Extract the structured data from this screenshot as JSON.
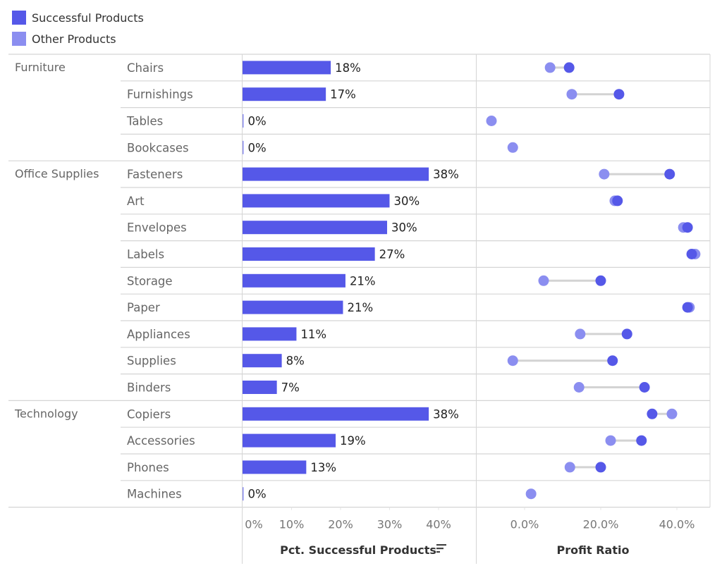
{
  "legend": {
    "items": [
      {
        "label": "Successful Products",
        "color": "#5558E8"
      },
      {
        "label": "Other Products",
        "color": "#8B8EF0"
      }
    ]
  },
  "colors": {
    "successful": "#5558E8",
    "other": "#8B8EF0",
    "connector": "#D3D3D3",
    "grid": "#D5D5D5"
  },
  "chart_data": [
    {
      "type": "bar",
      "title": "",
      "xlabel": "Pct. Successful Products",
      "ylabel": "",
      "xlim": [
        0,
        0.45
      ],
      "x_ticks": [
        "0%",
        "10%",
        "20%",
        "30%",
        "40%"
      ],
      "x_tick_values": [
        0,
        0.1,
        0.2,
        0.3,
        0.4
      ],
      "sorted": "descending",
      "categories": [
        "Chairs",
        "Furnishings",
        "Tables",
        "Bookcases",
        "Fasteners",
        "Art",
        "Envelopes",
        "Labels",
        "Storage",
        "Paper",
        "Appliances",
        "Supplies",
        "Binders",
        "Copiers",
        "Accessories",
        "Phones",
        "Machines"
      ],
      "values": [
        0.18,
        0.17,
        0.0,
        0.0,
        0.38,
        0.3,
        0.295,
        0.27,
        0.21,
        0.205,
        0.11,
        0.08,
        0.07,
        0.38,
        0.19,
        0.13,
        0.0
      ],
      "labels": [
        "18%",
        "17%",
        "0%",
        "0%",
        "38%",
        "30%",
        "30%",
        "27%",
        "21%",
        "21%",
        "11%",
        "8%",
        "7%",
        "38%",
        "19%",
        "13%",
        "0%"
      ]
    },
    {
      "type": "scatter",
      "subtype": "dumbbell",
      "title": "",
      "xlabel": "Profit Ratio",
      "ylabel": "",
      "xlim": [
        -0.12,
        0.48
      ],
      "x_ticks": [
        "0.0%",
        "20.0%",
        "40.0%"
      ],
      "x_tick_values": [
        0,
        0.2,
        0.4
      ],
      "categories": [
        "Chairs",
        "Furnishings",
        "Tables",
        "Bookcases",
        "Fasteners",
        "Art",
        "Envelopes",
        "Labels",
        "Storage",
        "Paper",
        "Appliances",
        "Supplies",
        "Binders",
        "Copiers",
        "Accessories",
        "Phones",
        "Machines"
      ],
      "series": [
        {
          "name": "Other Products",
          "values": [
            0.067,
            0.124,
            -0.087,
            -0.031,
            0.209,
            0.237,
            0.417,
            0.448,
            0.05,
            0.433,
            0.146,
            -0.031,
            0.143,
            0.387,
            0.226,
            0.119,
            0.017
          ]
        },
        {
          "name": "Successful Products",
          "values": [
            0.117,
            0.248,
            null,
            null,
            0.381,
            0.244,
            0.428,
            0.439,
            0.2,
            0.428,
            0.269,
            0.231,
            0.315,
            0.335,
            0.307,
            0.2,
            null
          ]
        }
      ]
    }
  ],
  "groups": [
    {
      "label": "Furniture",
      "start": 0,
      "count": 4
    },
    {
      "label": "Office Supplies",
      "start": 4,
      "count": 9
    },
    {
      "label": "Technology",
      "start": 13,
      "count": 4
    }
  ],
  "sort_icon": "sort-descending-icon"
}
